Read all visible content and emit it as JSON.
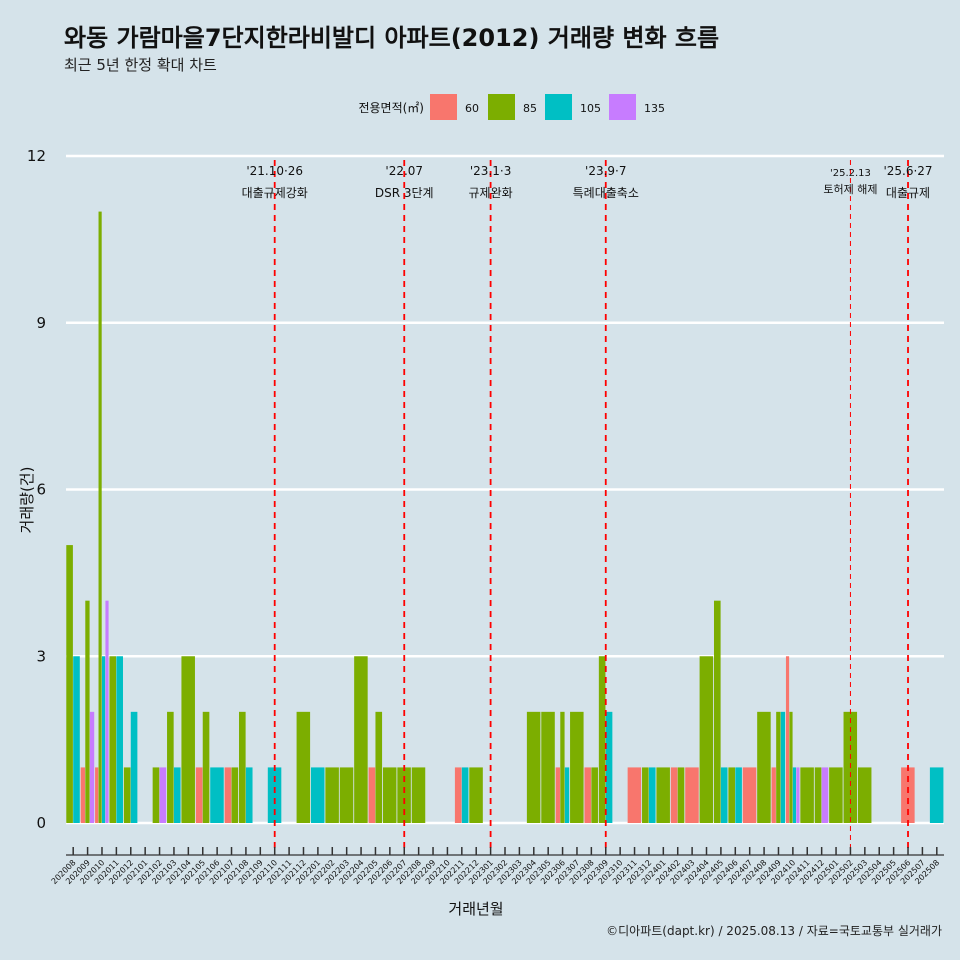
{
  "chart_data": {
    "type": "bar",
    "title": "와동 가람마을7단지한라비발디 아파트(2012) 거래량 변화 흐름",
    "subtitle": "최근 5년 한정 확대 차트",
    "xlabel": "거래년월",
    "ylabel": "거래량(건)",
    "caption": "©디아파트(dapt.kr) / 2025.08.13 / 자료=국토교통부 실거래가",
    "ylim": [
      -0.5,
      12
    ],
    "yticks": [
      0,
      3,
      6,
      9,
      12
    ],
    "grid": true,
    "legend": {
      "title": "전용면적(㎡)",
      "position": "top"
    },
    "categories": [
      "202008",
      "202009",
      "202010",
      "202011",
      "202012",
      "202101",
      "202102",
      "202103",
      "202104",
      "202105",
      "202106",
      "202107",
      "202108",
      "202109",
      "202110",
      "202111",
      "202112",
      "202201",
      "202202",
      "202203",
      "202204",
      "202205",
      "202206",
      "202207",
      "202208",
      "202209",
      "202210",
      "202211",
      "202212",
      "202301",
      "202302",
      "202303",
      "202304",
      "202305",
      "202306",
      "202307",
      "202308",
      "202309",
      "202310",
      "202311",
      "202312",
      "202401",
      "202402",
      "202403",
      "202404",
      "202405",
      "202406",
      "202407",
      "202408",
      "202409",
      "202410",
      "202411",
      "202412",
      "202501",
      "202502",
      "202503",
      "202504",
      "202505",
      "202506",
      "202507",
      "202508"
    ],
    "series": [
      {
        "name": "60",
        "color": "#f8766d",
        "values": [
          0,
          1,
          1,
          0,
          0,
          0,
          0,
          0,
          0,
          1,
          0,
          1,
          0,
          0,
          0,
          0,
          0,
          0,
          0,
          0,
          0,
          1,
          0,
          0,
          0,
          0,
          0,
          1,
          0,
          0,
          0,
          0,
          0,
          0,
          1,
          0,
          1,
          0,
          0,
          1,
          0,
          0,
          1,
          1,
          0,
          0,
          0,
          1,
          0,
          1,
          3,
          0,
          0,
          0,
          0,
          0,
          0,
          0,
          1,
          0,
          0
        ]
      },
      {
        "name": "85",
        "color": "#7cae00",
        "values": [
          5,
          4,
          11,
          3,
          1,
          0,
          1,
          2,
          3,
          2,
          0,
          1,
          2,
          0,
          0,
          0,
          2,
          0,
          1,
          1,
          3,
          2,
          1,
          1,
          1,
          0,
          0,
          0,
          1,
          0,
          0,
          0,
          2,
          2,
          2,
          2,
          1,
          3,
          0,
          0,
          1,
          1,
          1,
          0,
          3,
          4,
          1,
          0,
          2,
          2,
          2,
          1,
          1,
          1,
          2,
          1,
          0,
          0,
          0,
          0,
          0
        ]
      },
      {
        "name": "105",
        "color": "#00bfc4",
        "values": [
          3,
          0,
          3,
          3,
          2,
          0,
          0,
          1,
          0,
          0,
          1,
          0,
          1,
          0,
          1,
          0,
          0,
          1,
          0,
          0,
          0,
          0,
          0,
          0,
          0,
          0,
          0,
          1,
          0,
          0,
          0,
          0,
          0,
          0,
          1,
          0,
          0,
          2,
          0,
          0,
          1,
          0,
          0,
          0,
          0,
          1,
          1,
          0,
          0,
          2,
          1,
          0,
          0,
          0,
          0,
          0,
          0,
          0,
          0,
          0,
          1
        ]
      },
      {
        "name": "135",
        "color": "#c77cff",
        "values": [
          0,
          2,
          4,
          0,
          0,
          0,
          1,
          0,
          0,
          0,
          0,
          0,
          0,
          0,
          0,
          0,
          0,
          0,
          0,
          0,
          0,
          0,
          0,
          0,
          0,
          0,
          0,
          0,
          0,
          0,
          0,
          0,
          0,
          0,
          0,
          0,
          0,
          0,
          0,
          0,
          0,
          0,
          0,
          0,
          0,
          0,
          0,
          0,
          0,
          0,
          1,
          0,
          1,
          0,
          0,
          0,
          0,
          0,
          0,
          0,
          0
        ]
      }
    ],
    "annotations": [
      {
        "x": "202110",
        "date": "'21.10·26",
        "label": "대출규제강화"
      },
      {
        "x": "202207",
        "date": "'22.07",
        "label": "DSR 3단계"
      },
      {
        "x": "202301",
        "date": "'23.1·3",
        "label": "규제완화"
      },
      {
        "x": "202309",
        "date": "'23.9·7",
        "label": "특례대출축소"
      },
      {
        "x": "202502",
        "date": "'25.2.13",
        "label": "토허제 해제"
      },
      {
        "x": "202506",
        "date": "'25.6·27",
        "label": "대출규제"
      }
    ]
  }
}
